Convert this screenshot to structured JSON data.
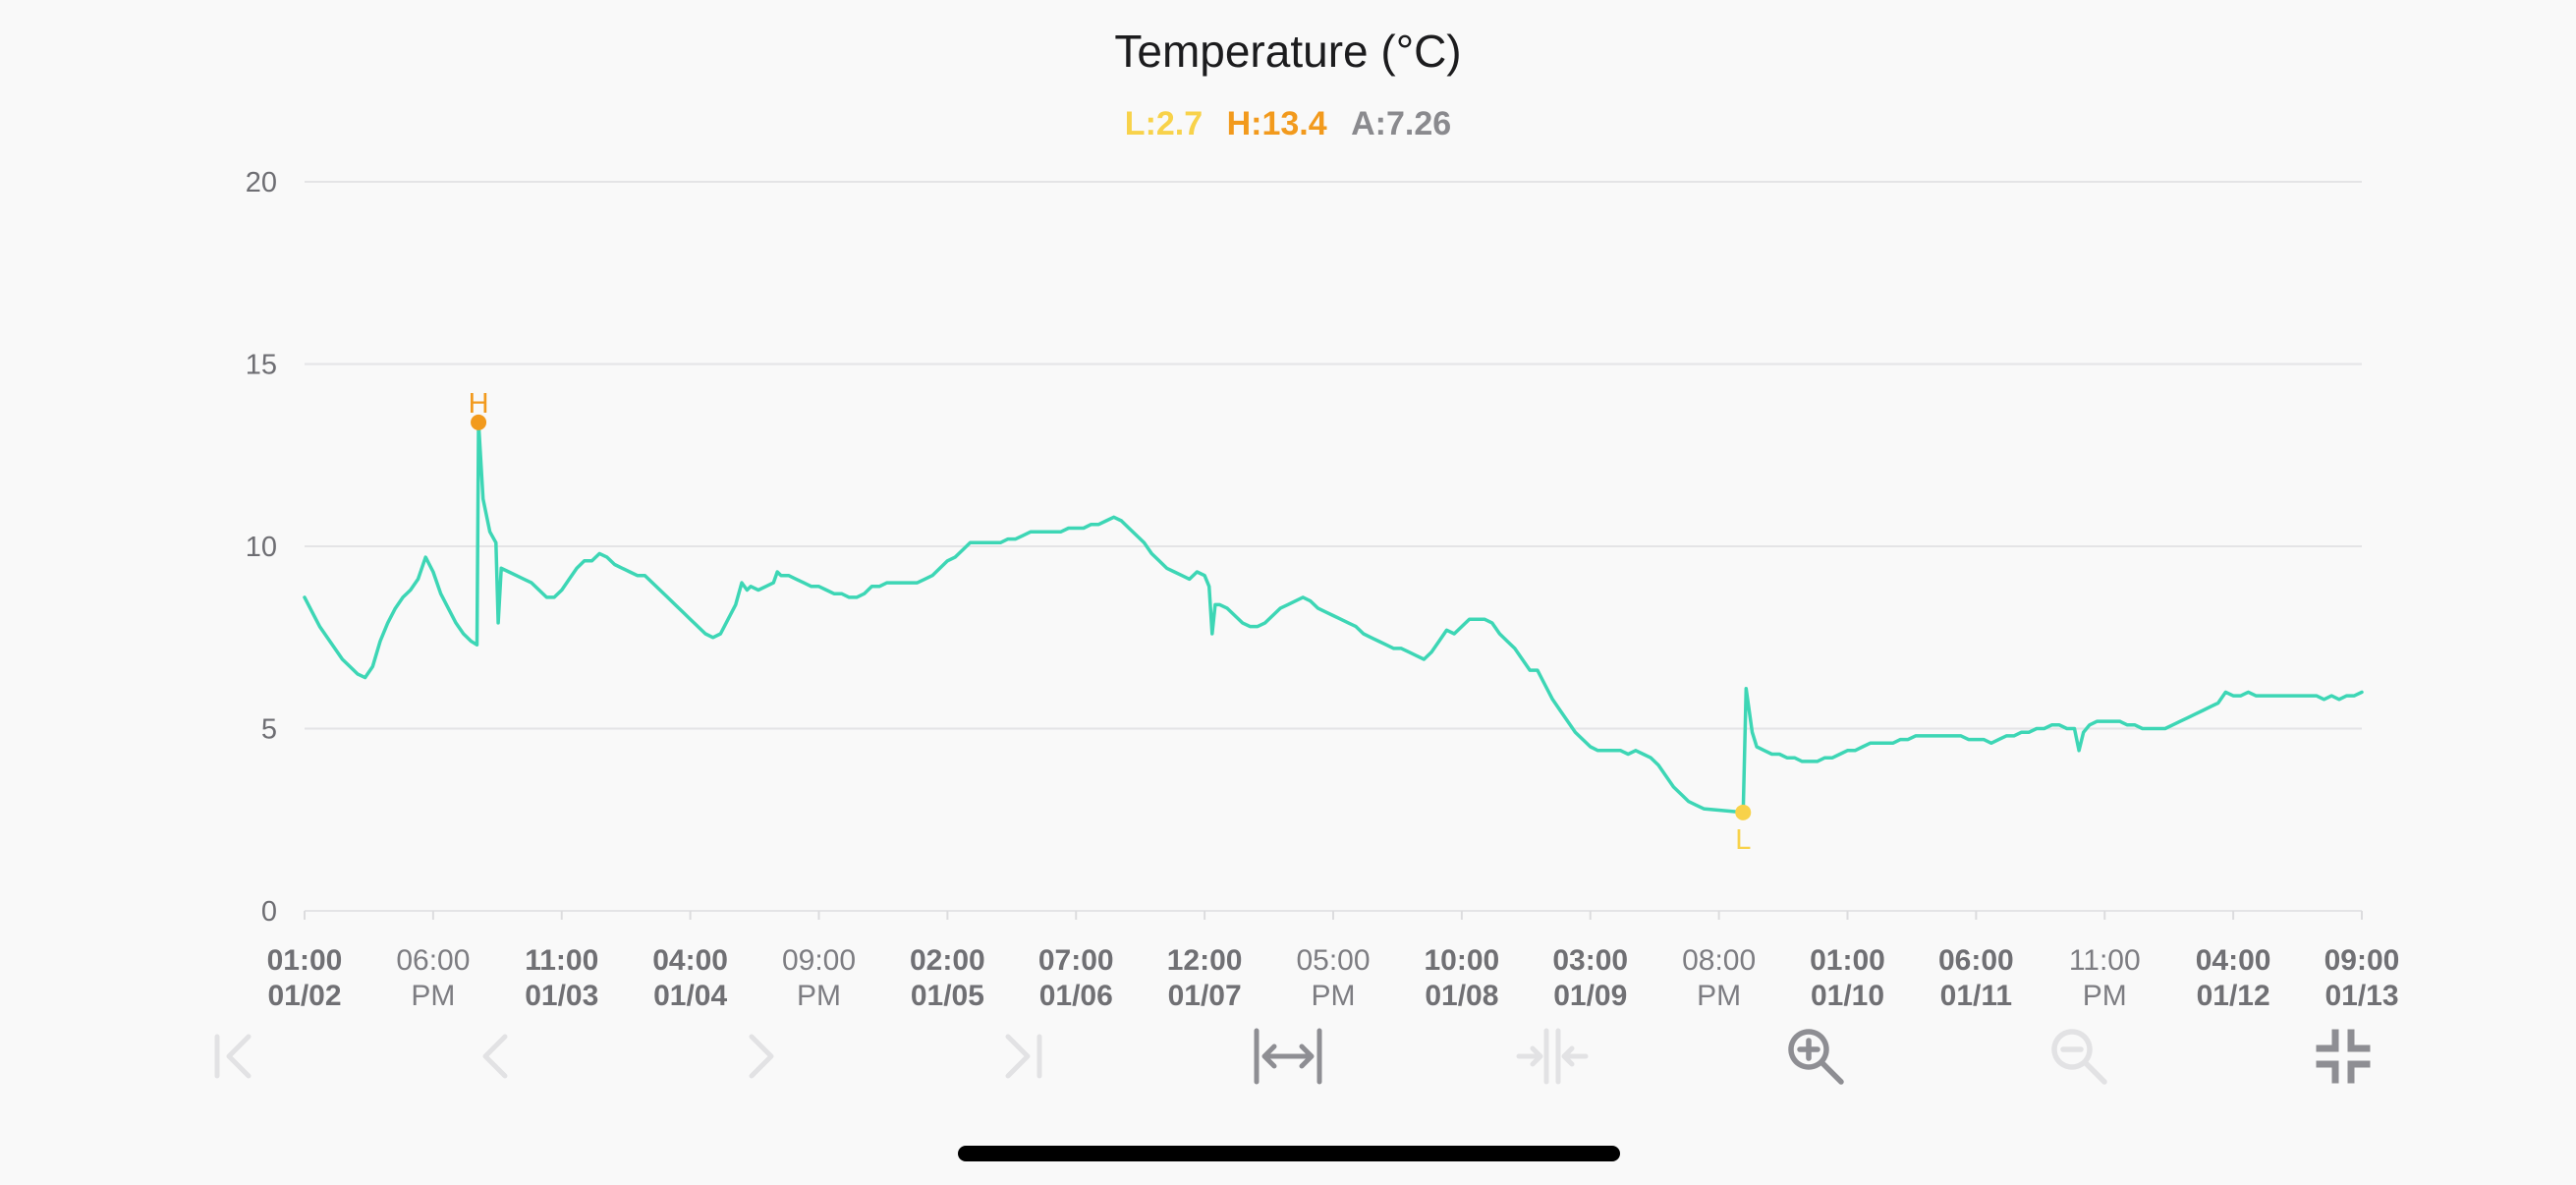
{
  "chart_data": {
    "type": "line",
    "title": "Temperature (°C)",
    "stats": {
      "low": {
        "label": "L:2.7",
        "color": "#f8d24a"
      },
      "high": {
        "label": "H:13.4",
        "color": "#f29a1d"
      },
      "avg": {
        "label": "A:7.26",
        "color": "#8a8a8e"
      }
    },
    "ylim": [
      0,
      20
    ],
    "y_ticks": [
      0,
      5,
      10,
      15,
      20
    ],
    "xlim": [
      0,
      272
    ],
    "x_ticks": [
      {
        "x": 0,
        "line1": "01:00",
        "line2": "01/02",
        "bold": true
      },
      {
        "x": 17,
        "line1": "06:00",
        "line2": "PM",
        "bold": false
      },
      {
        "x": 34,
        "line1": "11:00",
        "line2": "01/03",
        "bold": true
      },
      {
        "x": 51,
        "line1": "04:00",
        "line2": "01/04",
        "bold": true
      },
      {
        "x": 68,
        "line1": "09:00",
        "line2": "PM",
        "bold": false
      },
      {
        "x": 85,
        "line1": "02:00",
        "line2": "01/05",
        "bold": true
      },
      {
        "x": 102,
        "line1": "07:00",
        "line2": "01/06",
        "bold": true
      },
      {
        "x": 119,
        "line1": "12:00",
        "line2": "01/07",
        "bold": true
      },
      {
        "x": 136,
        "line1": "05:00",
        "line2": "PM",
        "bold": false
      },
      {
        "x": 153,
        "line1": "10:00",
        "line2": "01/08",
        "bold": true
      },
      {
        "x": 170,
        "line1": "03:00",
        "line2": "01/09",
        "bold": true
      },
      {
        "x": 187,
        "line1": "08:00",
        "line2": "PM",
        "bold": false
      },
      {
        "x": 204,
        "line1": "01:00",
        "line2": "01/10",
        "bold": true
      },
      {
        "x": 221,
        "line1": "06:00",
        "line2": "01/11",
        "bold": true
      },
      {
        "x": 238,
        "line1": "11:00",
        "line2": "PM",
        "bold": false
      },
      {
        "x": 255,
        "line1": "04:00",
        "line2": "01/12",
        "bold": true
      },
      {
        "x": 272,
        "line1": "09:00",
        "line2": "01/13",
        "bold": true
      }
    ],
    "series": [
      {
        "color": "#3dd6b5",
        "points": [
          [
            0,
            8.6
          ],
          [
            1,
            8.2
          ],
          [
            2,
            7.8
          ],
          [
            3,
            7.5
          ],
          [
            4,
            7.2
          ],
          [
            5,
            6.9
          ],
          [
            6,
            6.7
          ],
          [
            7,
            6.5
          ],
          [
            8,
            6.4
          ],
          [
            9,
            6.7
          ],
          [
            10,
            7.4
          ],
          [
            11,
            7.9
          ],
          [
            12,
            8.3
          ],
          [
            13,
            8.6
          ],
          [
            14,
            8.8
          ],
          [
            15,
            9.1
          ],
          [
            16,
            9.7
          ],
          [
            17,
            9.3
          ],
          [
            18,
            8.7
          ],
          [
            19,
            8.3
          ],
          [
            20,
            7.9
          ],
          [
            21,
            7.6
          ],
          [
            22,
            7.4
          ],
          [
            22.8,
            7.3
          ],
          [
            23,
            13.4
          ],
          [
            23.6,
            11.3
          ],
          [
            24.5,
            10.4
          ],
          [
            25.3,
            10.1
          ],
          [
            25.6,
            7.9
          ],
          [
            26,
            9.4
          ],
          [
            27,
            9.3
          ],
          [
            28,
            9.2
          ],
          [
            29,
            9.1
          ],
          [
            30,
            9.0
          ],
          [
            31,
            8.8
          ],
          [
            32,
            8.6
          ],
          [
            33,
            8.6
          ],
          [
            34,
            8.8
          ],
          [
            35,
            9.1
          ],
          [
            36,
            9.4
          ],
          [
            37,
            9.6
          ],
          [
            38,
            9.6
          ],
          [
            39,
            9.8
          ],
          [
            40,
            9.7
          ],
          [
            41,
            9.5
          ],
          [
            42,
            9.4
          ],
          [
            43,
            9.3
          ],
          [
            44,
            9.2
          ],
          [
            45,
            9.2
          ],
          [
            46,
            9.0
          ],
          [
            47,
            8.8
          ],
          [
            48,
            8.6
          ],
          [
            49,
            8.4
          ],
          [
            50,
            8.2
          ],
          [
            51,
            8.0
          ],
          [
            52,
            7.8
          ],
          [
            53,
            7.6
          ],
          [
            54,
            7.5
          ],
          [
            55,
            7.6
          ],
          [
            56,
            8.0
          ],
          [
            57,
            8.4
          ],
          [
            57.8,
            9.0
          ],
          [
            58.5,
            8.8
          ],
          [
            59,
            8.9
          ],
          [
            60,
            8.8
          ],
          [
            61,
            8.9
          ],
          [
            62,
            9.0
          ],
          [
            62.5,
            9.3
          ],
          [
            63,
            9.2
          ],
          [
            64,
            9.2
          ],
          [
            65,
            9.1
          ],
          [
            66,
            9.0
          ],
          [
            67,
            8.9
          ],
          [
            68,
            8.9
          ],
          [
            69,
            8.8
          ],
          [
            70,
            8.7
          ],
          [
            71,
            8.7
          ],
          [
            72,
            8.6
          ],
          [
            73,
            8.6
          ],
          [
            74,
            8.7
          ],
          [
            75,
            8.9
          ],
          [
            76,
            8.9
          ],
          [
            77,
            9.0
          ],
          [
            78,
            9.0
          ],
          [
            79,
            9.0
          ],
          [
            80,
            9.0
          ],
          [
            81,
            9.0
          ],
          [
            82,
            9.1
          ],
          [
            83,
            9.2
          ],
          [
            84,
            9.4
          ],
          [
            85,
            9.6
          ],
          [
            86,
            9.7
          ],
          [
            87,
            9.9
          ],
          [
            88,
            10.1
          ],
          [
            89,
            10.1
          ],
          [
            90,
            10.1
          ],
          [
            91,
            10.1
          ],
          [
            92,
            10.1
          ],
          [
            93,
            10.2
          ],
          [
            94,
            10.2
          ],
          [
            95,
            10.3
          ],
          [
            96,
            10.4
          ],
          [
            97,
            10.4
          ],
          [
            98,
            10.4
          ],
          [
            99,
            10.4
          ],
          [
            100,
            10.4
          ],
          [
            101,
            10.5
          ],
          [
            102,
            10.5
          ],
          [
            103,
            10.5
          ],
          [
            104,
            10.6
          ],
          [
            105,
            10.6
          ],
          [
            106,
            10.7
          ],
          [
            107,
            10.8
          ],
          [
            108,
            10.7
          ],
          [
            109,
            10.5
          ],
          [
            110,
            10.3
          ],
          [
            111,
            10.1
          ],
          [
            112,
            9.8
          ],
          [
            113,
            9.6
          ],
          [
            114,
            9.4
          ],
          [
            115,
            9.3
          ],
          [
            116,
            9.2
          ],
          [
            117,
            9.1
          ],
          [
            118,
            9.3
          ],
          [
            119,
            9.2
          ],
          [
            119.6,
            8.9
          ],
          [
            120,
            7.6
          ],
          [
            120.4,
            8.4
          ],
          [
            121,
            8.4
          ],
          [
            122,
            8.3
          ],
          [
            123,
            8.1
          ],
          [
            124,
            7.9
          ],
          [
            125,
            7.8
          ],
          [
            126,
            7.8
          ],
          [
            127,
            7.9
          ],
          [
            128,
            8.1
          ],
          [
            129,
            8.3
          ],
          [
            130,
            8.4
          ],
          [
            131,
            8.5
          ],
          [
            132,
            8.6
          ],
          [
            133,
            8.5
          ],
          [
            134,
            8.3
          ],
          [
            135,
            8.2
          ],
          [
            136,
            8.1
          ],
          [
            137,
            8.0
          ],
          [
            138,
            7.9
          ],
          [
            139,
            7.8
          ],
          [
            140,
            7.6
          ],
          [
            141,
            7.5
          ],
          [
            142,
            7.4
          ],
          [
            143,
            7.3
          ],
          [
            144,
            7.2
          ],
          [
            145,
            7.2
          ],
          [
            146,
            7.1
          ],
          [
            147,
            7.0
          ],
          [
            148,
            6.9
          ],
          [
            149,
            7.1
          ],
          [
            150,
            7.4
          ],
          [
            151,
            7.7
          ],
          [
            152,
            7.6
          ],
          [
            153,
            7.8
          ],
          [
            154,
            8.0
          ],
          [
            155,
            8.0
          ],
          [
            156,
            8.0
          ],
          [
            157,
            7.9
          ],
          [
            158,
            7.6
          ],
          [
            159,
            7.4
          ],
          [
            160,
            7.2
          ],
          [
            161,
            6.9
          ],
          [
            162,
            6.6
          ],
          [
            163,
            6.6
          ],
          [
            164,
            6.2
          ],
          [
            165,
            5.8
          ],
          [
            166,
            5.5
          ],
          [
            167,
            5.2
          ],
          [
            168,
            4.9
          ],
          [
            169,
            4.7
          ],
          [
            170,
            4.5
          ],
          [
            171,
            4.4
          ],
          [
            172,
            4.4
          ],
          [
            173,
            4.4
          ],
          [
            174,
            4.4
          ],
          [
            175,
            4.3
          ],
          [
            176,
            4.4
          ],
          [
            177,
            4.3
          ],
          [
            178,
            4.2
          ],
          [
            179,
            4.0
          ],
          [
            180,
            3.7
          ],
          [
            181,
            3.4
          ],
          [
            182,
            3.2
          ],
          [
            183,
            3.0
          ],
          [
            184,
            2.9
          ],
          [
            185,
            2.8
          ],
          [
            190.2,
            2.7
          ],
          [
            190.6,
            6.1
          ],
          [
            191.4,
            4.9
          ],
          [
            192,
            4.5
          ],
          [
            193,
            4.4
          ],
          [
            194,
            4.3
          ],
          [
            195,
            4.3
          ],
          [
            196,
            4.2
          ],
          [
            197,
            4.2
          ],
          [
            198,
            4.1
          ],
          [
            199,
            4.1
          ],
          [
            200,
            4.1
          ],
          [
            201,
            4.2
          ],
          [
            202,
            4.2
          ],
          [
            203,
            4.3
          ],
          [
            204,
            4.4
          ],
          [
            205,
            4.4
          ],
          [
            206,
            4.5
          ],
          [
            207,
            4.6
          ],
          [
            208,
            4.6
          ],
          [
            209,
            4.6
          ],
          [
            210,
            4.6
          ],
          [
            211,
            4.7
          ],
          [
            212,
            4.7
          ],
          [
            213,
            4.8
          ],
          [
            214,
            4.8
          ],
          [
            215,
            4.8
          ],
          [
            216,
            4.8
          ],
          [
            217,
            4.8
          ],
          [
            218,
            4.8
          ],
          [
            219,
            4.8
          ],
          [
            220,
            4.7
          ],
          [
            221,
            4.7
          ],
          [
            222,
            4.7
          ],
          [
            223,
            4.6
          ],
          [
            224,
            4.7
          ],
          [
            225,
            4.8
          ],
          [
            226,
            4.8
          ],
          [
            227,
            4.9
          ],
          [
            228,
            4.9
          ],
          [
            229,
            5.0
          ],
          [
            230,
            5.0
          ],
          [
            231,
            5.1
          ],
          [
            232,
            5.1
          ],
          [
            233,
            5.0
          ],
          [
            234,
            5.0
          ],
          [
            234.6,
            4.4
          ],
          [
            235.2,
            4.9
          ],
          [
            236,
            5.1
          ],
          [
            237,
            5.2
          ],
          [
            238,
            5.2
          ],
          [
            239,
            5.2
          ],
          [
            240,
            5.2
          ],
          [
            241,
            5.1
          ],
          [
            242,
            5.1
          ],
          [
            243,
            5.0
          ],
          [
            244,
            5.0
          ],
          [
            245,
            5.0
          ],
          [
            246,
            5.0
          ],
          [
            247,
            5.1
          ],
          [
            248,
            5.2
          ],
          [
            249,
            5.3
          ],
          [
            250,
            5.4
          ],
          [
            251,
            5.5
          ],
          [
            252,
            5.6
          ],
          [
            253,
            5.7
          ],
          [
            254,
            6.0
          ],
          [
            255,
            5.9
          ],
          [
            256,
            5.9
          ],
          [
            257,
            6.0
          ],
          [
            258,
            5.9
          ],
          [
            259,
            5.9
          ],
          [
            260,
            5.9
          ],
          [
            261,
            5.9
          ],
          [
            262,
            5.9
          ],
          [
            263,
            5.9
          ],
          [
            264,
            5.9
          ],
          [
            265,
            5.9
          ],
          [
            266,
            5.9
          ],
          [
            267,
            5.8
          ],
          [
            268,
            5.9
          ],
          [
            269,
            5.8
          ],
          [
            270,
            5.9
          ],
          [
            271,
            5.9
          ],
          [
            272,
            6.0
          ]
        ]
      }
    ],
    "markers": [
      {
        "label": "H",
        "x": 23,
        "y": 13.4,
        "color": "#f29a1d",
        "position": "above"
      },
      {
        "label": "L",
        "x": 190.2,
        "y": 2.7,
        "color": "#f8d24a",
        "position": "below"
      }
    ],
    "grid": true,
    "legend": "none"
  },
  "toolbar": {
    "icons": [
      {
        "name": "jump-to-start-icon",
        "color": "#e2e2e4"
      },
      {
        "name": "previous-icon",
        "color": "#e2e2e4"
      },
      {
        "name": "next-icon",
        "color": "#e2e2e4"
      },
      {
        "name": "jump-to-end-icon",
        "color": "#e2e2e4"
      },
      {
        "name": "expand-horizontal-icon",
        "color": "#8e8e93"
      },
      {
        "name": "compress-horizontal-icon",
        "color": "#e2e2e4"
      },
      {
        "name": "zoom-in-icon",
        "color": "#8e8e93"
      },
      {
        "name": "zoom-out-icon",
        "color": "#e2e2e4"
      },
      {
        "name": "exit-fullscreen-icon",
        "color": "#8e8e93"
      }
    ]
  }
}
